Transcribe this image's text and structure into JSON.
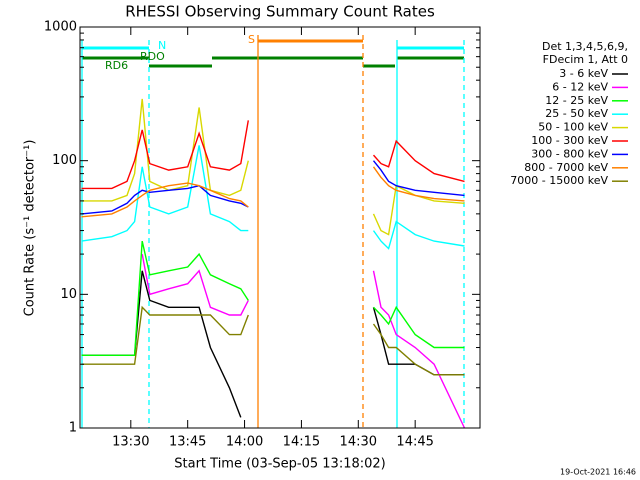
{
  "chart_data": {
    "type": "line",
    "title": "RHESSI Observing Summary Count Rates",
    "x_label": "Start Time (03-Sep-05 13:18:02)",
    "y_label": "Count Rate (s⁻¹ detector⁻¹)",
    "footer": "19-Oct-2021 16:46",
    "legend_header": [
      "Det 1,3,4,5,6,9,",
      "FDecim 1, Att 0"
    ],
    "annotations": [
      "N",
      "S",
      "RDO",
      "RD6"
    ],
    "log_y": true,
    "xlim": [
      796.6,
      902.1
    ],
    "xticks": [
      {
        "value": 810,
        "label": "13:30"
      },
      {
        "value": 825,
        "label": "13:45"
      },
      {
        "value": 840,
        "label": "14:00"
      },
      {
        "value": 855,
        "label": "14:15"
      },
      {
        "value": 870,
        "label": "14:30"
      },
      {
        "value": 885,
        "label": "14:45"
      }
    ],
    "ylim": [
      1,
      1000
    ],
    "yticks": [
      1,
      10,
      100,
      1000
    ],
    "x": [
      797,
      805,
      809,
      811,
      813,
      815,
      820,
      825,
      828,
      831,
      836,
      839,
      841,
      850,
      874,
      876,
      878,
      880,
      885,
      890,
      898
    ],
    "series": [
      {
        "name": "3 - 6 keV",
        "color": "#000000",
        "values": [
          3.5,
          3.5,
          3.5,
          3.5,
          15,
          9,
          8,
          8,
          8,
          4,
          2,
          1.2,
          null,
          null,
          8,
          5,
          3,
          3,
          3,
          2.5,
          2.5
        ]
      },
      {
        "name": "6 - 12 keV",
        "color": "#ff00ff",
        "values": [
          null,
          null,
          null,
          null,
          20,
          10,
          11,
          12,
          15,
          8,
          7,
          7,
          9,
          null,
          15,
          8,
          7,
          5,
          4,
          3,
          1
        ]
      },
      {
        "name": "12 - 25 keV",
        "color": "#00ff00",
        "values": [
          3.5,
          3.5,
          3.5,
          3.5,
          25,
          14,
          15,
          16,
          20,
          14,
          12,
          11,
          9,
          null,
          8,
          7,
          6,
          8,
          5,
          4,
          4
        ]
      },
      {
        "name": "25 - 50 keV",
        "color": "#00ffff",
        "values": [
          25,
          27,
          30,
          35,
          90,
          45,
          40,
          45,
          130,
          40,
          35,
          30,
          30,
          null,
          30,
          25,
          22,
          35,
          28,
          25,
          23
        ]
      },
      {
        "name": "50 - 100 keV",
        "color": "#d8d800",
        "values": [
          50,
          50,
          55,
          80,
          290,
          70,
          60,
          65,
          250,
          60,
          55,
          60,
          100,
          null,
          40,
          30,
          28,
          65,
          55,
          50,
          48
        ]
      },
      {
        "name": "100 - 300 keV",
        "color": "#ff0000",
        "values": [
          62,
          62,
          70,
          100,
          170,
          95,
          85,
          90,
          160,
          90,
          85,
          95,
          200,
          null,
          110,
          95,
          90,
          140,
          100,
          80,
          70
        ]
      },
      {
        "name": "300 - 800 keV",
        "color": "#0000ff",
        "values": [
          40,
          42,
          48,
          55,
          60,
          58,
          60,
          62,
          65,
          55,
          50,
          48,
          45,
          null,
          100,
          85,
          70,
          65,
          60,
          58,
          55
        ]
      },
      {
        "name": "800 - 7000 keV",
        "color": "#ff8000",
        "values": [
          38,
          40,
          45,
          50,
          55,
          60,
          65,
          68,
          65,
          60,
          52,
          50,
          45,
          null,
          90,
          75,
          65,
          60,
          55,
          52,
          50
        ]
      },
      {
        "name": "7000 - 15000 keV",
        "color": "#808000",
        "values": [
          3,
          3,
          3,
          3,
          8,
          7,
          7,
          7,
          7,
          7,
          5,
          5,
          7,
          null,
          6,
          5,
          4,
          4,
          3,
          2.5,
          2.5
        ]
      }
    ]
  }
}
